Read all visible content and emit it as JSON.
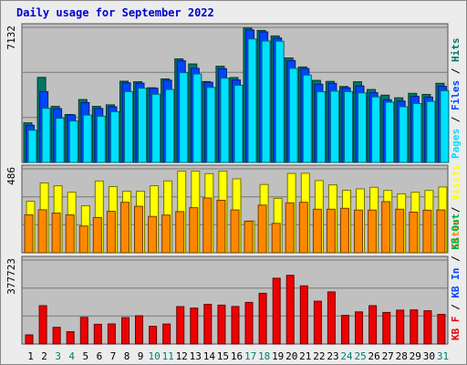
{
  "title": "Daily usage for September 2022",
  "colors": {
    "pages": "#00e0ff",
    "files": "#0044ff",
    "hits": "#007766",
    "sites": "#ff8800",
    "visits": "#ffff00",
    "kb": "#ee0000",
    "weekend": "#00806a",
    "axis_text": "#000000",
    "panel_bg": "#c0c0c0"
  },
  "chart_data": [
    {
      "type": "bar",
      "categories": [
        "1",
        "2",
        "3",
        "4",
        "5",
        "6",
        "7",
        "8",
        "9",
        "10",
        "11",
        "12",
        "13",
        "14",
        "15",
        "16",
        "17",
        "18",
        "19",
        "20",
        "21",
        "22",
        "23",
        "24",
        "25",
        "26",
        "27",
        "28",
        "29",
        "30",
        "31"
      ],
      "weekend_days": [
        "3",
        "4",
        "10",
        "11",
        "17",
        "18",
        "24",
        "25",
        "31"
      ],
      "ymax_label": "7132",
      "ylim": [
        0,
        7132
      ],
      "right_labels": [
        "Pages",
        "Files",
        "Hits"
      ],
      "series": [
        {
          "name": "Hits",
          "values": [
            2090,
            4490,
            2960,
            2530,
            3320,
            2960,
            3040,
            4290,
            4260,
            3940,
            4410,
            5470,
            5200,
            4270,
            5080,
            4480,
            7100,
            6970,
            6680,
            5520,
            5040,
            4330,
            4280,
            4010,
            4260,
            3850,
            3550,
            3410,
            3650,
            3590,
            4180
          ]
        },
        {
          "name": "Files",
          "values": [
            1960,
            3740,
            2840,
            2510,
            3160,
            2850,
            2940,
            4200,
            4190,
            3920,
            4340,
            5370,
            4970,
            4230,
            4950,
            4350,
            6990,
            6890,
            6570,
            5380,
            4960,
            4130,
            4180,
            3940,
            4040,
            3680,
            3310,
            3240,
            3490,
            3450,
            4020
          ]
        },
        {
          "name": "Pages",
          "values": [
            1700,
            2860,
            2330,
            2190,
            2500,
            2440,
            2680,
            3740,
            3920,
            3600,
            3850,
            4740,
            4670,
            3960,
            4450,
            4070,
            6520,
            6410,
            6400,
            4970,
            4610,
            3730,
            3770,
            3740,
            3670,
            3460,
            3180,
            2940,
            3110,
            3220,
            3790
          ]
        }
      ]
    },
    {
      "type": "bar",
      "categories": [
        "1",
        "2",
        "3",
        "4",
        "5",
        "6",
        "7",
        "8",
        "9",
        "10",
        "11",
        "12",
        "13",
        "14",
        "15",
        "16",
        "17",
        "18",
        "19",
        "20",
        "21",
        "22",
        "23",
        "24",
        "25",
        "26",
        "27",
        "28",
        "29",
        "30",
        "31"
      ],
      "ymax_label": "486",
      "ylim": [
        0,
        486
      ],
      "right_labels": [
        "Sites",
        "Visits"
      ],
      "series": [
        {
          "name": "Visits",
          "values": [
            298,
            404,
            388,
            350,
            272,
            415,
            383,
            356,
            356,
            388,
            416,
            473,
            473,
            458,
            473,
            428,
            184,
            395,
            315,
            459,
            460,
            418,
            393,
            362,
            370,
            379,
            361,
            341,
            350,
            361,
            381
          ]
        },
        {
          "name": "Sites",
          "values": [
            220,
            249,
            230,
            219,
            155,
            204,
            240,
            292,
            269,
            210,
            218,
            238,
            261,
            317,
            304,
            248,
            182,
            276,
            170,
            289,
            292,
            252,
            252,
            257,
            247,
            247,
            296,
            252,
            235,
            246,
            248
          ]
        }
      ]
    },
    {
      "type": "bar",
      "categories": [
        "1",
        "2",
        "3",
        "4",
        "5",
        "6",
        "7",
        "8",
        "9",
        "10",
        "11",
        "12",
        "13",
        "14",
        "15",
        "16",
        "17",
        "18",
        "19",
        "20",
        "21",
        "22",
        "23",
        "24",
        "25",
        "26",
        "27",
        "28",
        "29",
        "30",
        "31"
      ],
      "ymax_label": "377723",
      "ylim": [
        0,
        377723
      ],
      "right_labels": [
        "KB F",
        "KB In",
        "KB Out"
      ],
      "series": [
        {
          "name": "KB F",
          "values": [
            41100,
            172300,
            75100,
            55600,
            119800,
            88500,
            90300,
            118700,
            127000,
            79600,
            89800,
            168400,
            161900,
            178200,
            174900,
            168700,
            187100,
            228400,
            296000,
            309100,
            261700,
            192500,
            234500,
            128900,
            144500,
            172300,
            142200,
            152200,
            153400,
            149700,
            133300
          ]
        }
      ]
    }
  ]
}
